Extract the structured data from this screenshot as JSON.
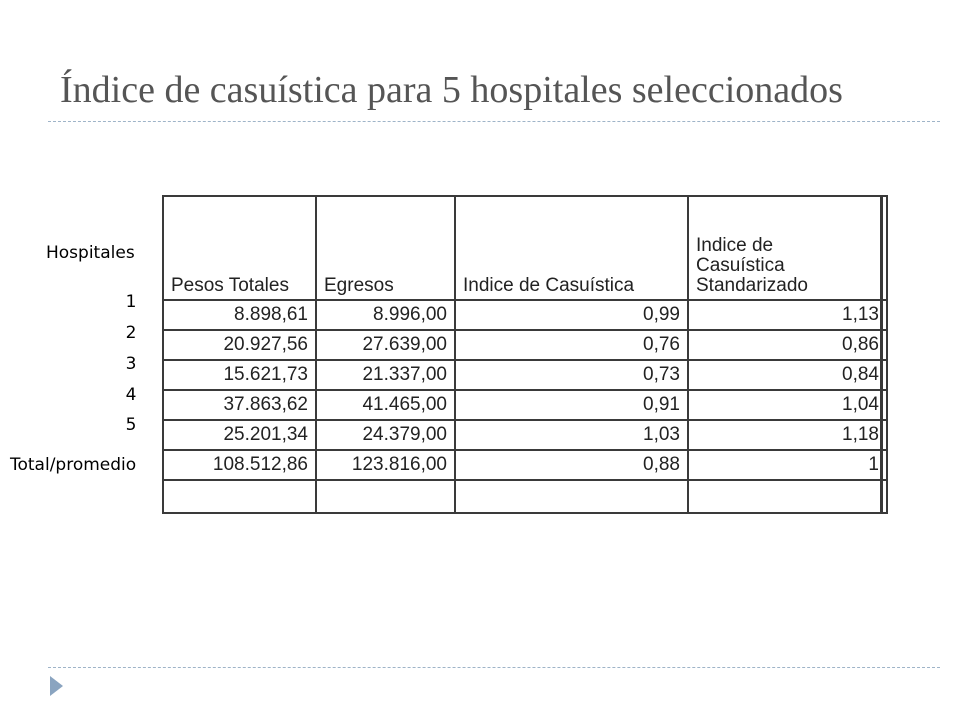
{
  "title": "Índice de casuística para 5 hospitales seleccionados",
  "row_header": "Hospitales",
  "hospital_numbers": [
    "1",
    "2",
    "3",
    "4",
    "5"
  ],
  "total_label": "Total/promedio",
  "table": {
    "columns": [
      "Pesos Totales",
      "Egresos",
      "Indice de Casuística",
      "Indice de Casuística Standarizado"
    ],
    "header_last_lines": [
      "Indice de",
      "Casuística",
      "Standarizado"
    ],
    "rows": [
      [
        "8.898,61",
        "8.996,00",
        "0,99",
        "1,13"
      ],
      [
        "20.927,56",
        "27.639,00",
        "0,76",
        "0,86"
      ],
      [
        "15.621,73",
        "21.337,00",
        "0,73",
        "0,84"
      ],
      [
        "37.863,62",
        "41.465,00",
        "0,91",
        "1,04"
      ],
      [
        "25.201,34",
        "24.379,00",
        "1,03",
        "1,18"
      ]
    ],
    "total_row": [
      "108.512,86",
      "123.816,00",
      "0,88",
      "1"
    ]
  }
}
